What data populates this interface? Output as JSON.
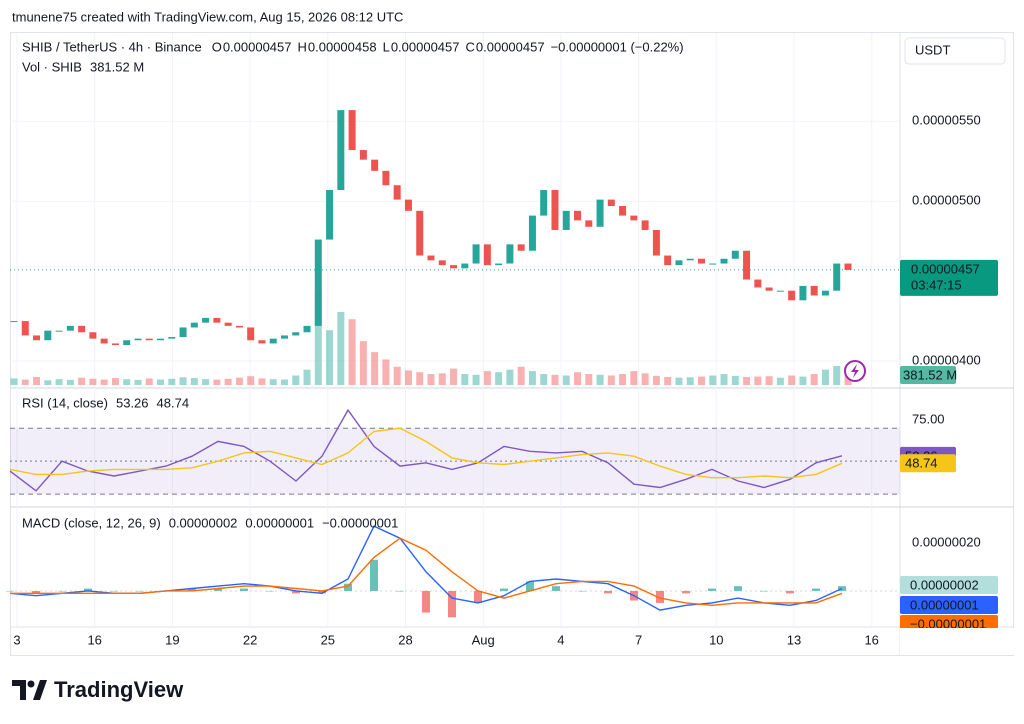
{
  "watermark": "tmunene75 created with TradingView.com, Aug 15, 2026 08:12 UTC",
  "footer": {
    "brand": "TradingView"
  },
  "chart_data": [
    {
      "type": "candlestick",
      "title": "SHIB / TetherUS · 4h · Binance",
      "ohlc": [
        {
          "label": "O",
          "value": "0.00000457"
        },
        {
          "label": "H",
          "value": "0.00000458"
        },
        {
          "label": "L",
          "value": "0.00000457"
        },
        {
          "label": "C",
          "value": "0.00000457"
        }
      ],
      "change": "−0.00000001 (−0.22%)",
      "currency": "USDT",
      "up_color": "#26a69a",
      "down_color": "#ef5350",
      "values": [
        4.25e-06,
        4.16e-06,
        4.13e-06,
        4.19e-06,
        4.19e-06,
        4.22e-06,
        4.18e-06,
        4.14e-06,
        4.11e-06,
        4.1e-06,
        4.13e-06,
        4.14e-06,
        4.13e-06,
        4.14e-06,
        4.15e-06,
        4.21e-06,
        4.24e-06,
        4.27e-06,
        4.24e-06,
        4.22e-06,
        4.21e-06,
        4.13e-06,
        4.11e-06,
        4.14e-06,
        4.16e-06,
        4.18e-06,
        4.22e-06,
        4.76e-06,
        5.07e-06,
        5.57e-06,
        5.32e-06,
        5.26e-06,
        5.19e-06,
        5.1e-06,
        5.01e-06,
        4.94e-06,
        4.66e-06,
        4.63e-06,
        4.6e-06,
        4.58e-06,
        4.61e-06,
        4.73e-06,
        4.6e-06,
        4.61e-06,
        4.73e-06,
        4.69e-06,
        4.91e-06,
        5.07e-06,
        4.82e-06,
        4.94e-06,
        4.88e-06,
        4.84e-06,
        5.01e-06,
        4.97e-06,
        4.91e-06,
        4.88e-06,
        4.82e-06,
        4.66e-06,
        4.6e-06,
        4.63e-06,
        4.64e-06,
        4.61e-06,
        4.61e-06,
        4.64e-06,
        4.69e-06,
        4.51e-06,
        4.46e-06,
        4.44e-06,
        4.44e-06,
        4.38e-06,
        4.47e-06,
        4.41e-06,
        4.44e-06,
        4.61e-06,
        4.57e-06
      ],
      "last_price_label": "0.00000457",
      "countdown": "03:47:15",
      "ylim": [
        3.85e-06,
        6.04e-06
      ],
      "yticks": [
        {
          "value": 5.5e-06,
          "label": "0.00000550"
        },
        {
          "value": 5e-06,
          "label": "0.00000500"
        },
        {
          "value": 4e-06,
          "label": "0.00000400"
        }
      ],
      "x_labels": [
        "3",
        "16",
        "19",
        "22",
        "25",
        "28",
        "Aug",
        "4",
        "7",
        "10",
        "13",
        "16"
      ],
      "grid": true,
      "volume": {
        "title": "Vol · SHIB",
        "value_label": "381.52 M",
        "values": [
          180,
          150,
          220,
          130,
          160,
          140,
          200,
          170,
          150,
          190,
          160,
          140,
          180,
          150,
          170,
          210,
          190,
          160,
          150,
          170,
          200,
          240,
          180,
          160,
          150,
          260,
          420,
          2600,
          1500,
          2000,
          1800,
          1200,
          900,
          700,
          500,
          400,
          350,
          300,
          320,
          450,
          300,
          280,
          380,
          350,
          420,
          500,
          380,
          300,
          280,
          260,
          350,
          300,
          280,
          260,
          300,
          380,
          320,
          250,
          220,
          200,
          210,
          230,
          260,
          300,
          250,
          220,
          230,
          240,
          200,
          260,
          230,
          300,
          420,
          520,
          381.52
        ]
      }
    },
    {
      "type": "line",
      "title": "RSI (14, close)",
      "ylim": [
        23.4,
        92
      ],
      "yticks": [
        {
          "value": 75,
          "label": "75.00"
        }
      ],
      "bands": [
        30,
        50,
        70
      ],
      "band_color": "#7e57c2",
      "series": [
        {
          "color": "#7e57c2",
          "values": [
            44,
            32,
            50,
            44,
            41,
            44,
            47,
            53,
            62,
            59,
            50,
            38,
            53,
            81,
            59,
            47,
            49,
            45,
            49,
            59,
            56,
            55,
            56,
            49,
            36,
            34,
            39,
            45,
            38,
            34,
            39,
            49,
            53.26
          ]
        },
        {
          "color": "#f5c518",
          "values": [
            45,
            42,
            42,
            44,
            45,
            45,
            45,
            46,
            50,
            55,
            56,
            52,
            48,
            55,
            68,
            70,
            62,
            52,
            49,
            48,
            50,
            52,
            54,
            55,
            53,
            47,
            42,
            40,
            40,
            41,
            40,
            42,
            48.74
          ]
        }
      ]
    },
    {
      "type": "macd",
      "title": "MACD (close, 12, 26, 9)",
      "ylim": [
        -1.42e-07,
        3.375e-07
      ],
      "yticks": [
        {
          "value": 2e-07,
          "label": "0.00000020"
        }
      ],
      "series": [
        {
          "kind": "histogram",
          "color": "#26a69a",
          "negative_color": "#ef5350",
          "legend_color": "#9fd8d2",
          "last_value_label": "0.00000002",
          "values": [
            0,
            -1e-08,
            0,
            1e-08,
            0,
            0,
            0,
            1e-08,
            1e-08,
            1e-08,
            0,
            -1e-08,
            -1e-08,
            3e-08,
            1.3e-07,
            0,
            -9e-08,
            -1.1e-07,
            -5e-08,
            1e-08,
            4e-08,
            2e-08,
            0,
            -1e-08,
            -4e-08,
            -5e-08,
            -1e-08,
            1e-08,
            2e-08,
            0,
            -1e-08,
            1e-08,
            2e-08
          ]
        },
        {
          "kind": "line",
          "color": "#2962ff",
          "last_value_label": "0.00000001",
          "values": [
            -1e-08,
            -2e-08,
            -1e-08,
            0,
            -1e-08,
            -1e-08,
            0,
            1e-08,
            2e-08,
            3e-08,
            2e-08,
            0,
            -1e-08,
            5e-08,
            2.7e-07,
            2.2e-07,
            8e-08,
            -3e-08,
            -5e-08,
            -2e-08,
            4e-08,
            5e-08,
            4e-08,
            3e-08,
            -2e-08,
            -8e-08,
            -6e-08,
            -5e-08,
            -3e-08,
            -5e-08,
            -6e-08,
            -4e-08,
            1e-08
          ]
        },
        {
          "kind": "line",
          "color": "#ff6d00",
          "last_value_label": "−0.00000001",
          "values": [
            -1e-08,
            -1e-08,
            -1e-08,
            -1e-08,
            -1e-08,
            -1e-08,
            0,
            0,
            1e-08,
            2e-08,
            2e-08,
            1e-08,
            0,
            2e-08,
            1.4e-07,
            2.2e-07,
            1.7e-07,
            8e-08,
            0,
            -3e-08,
            0,
            3e-08,
            4e-08,
            4e-08,
            2e-08,
            -3e-08,
            -5e-08,
            -6e-08,
            -5e-08,
            -5e-08,
            -5e-08,
            -5e-08,
            -1e-08
          ]
        }
      ]
    }
  ]
}
